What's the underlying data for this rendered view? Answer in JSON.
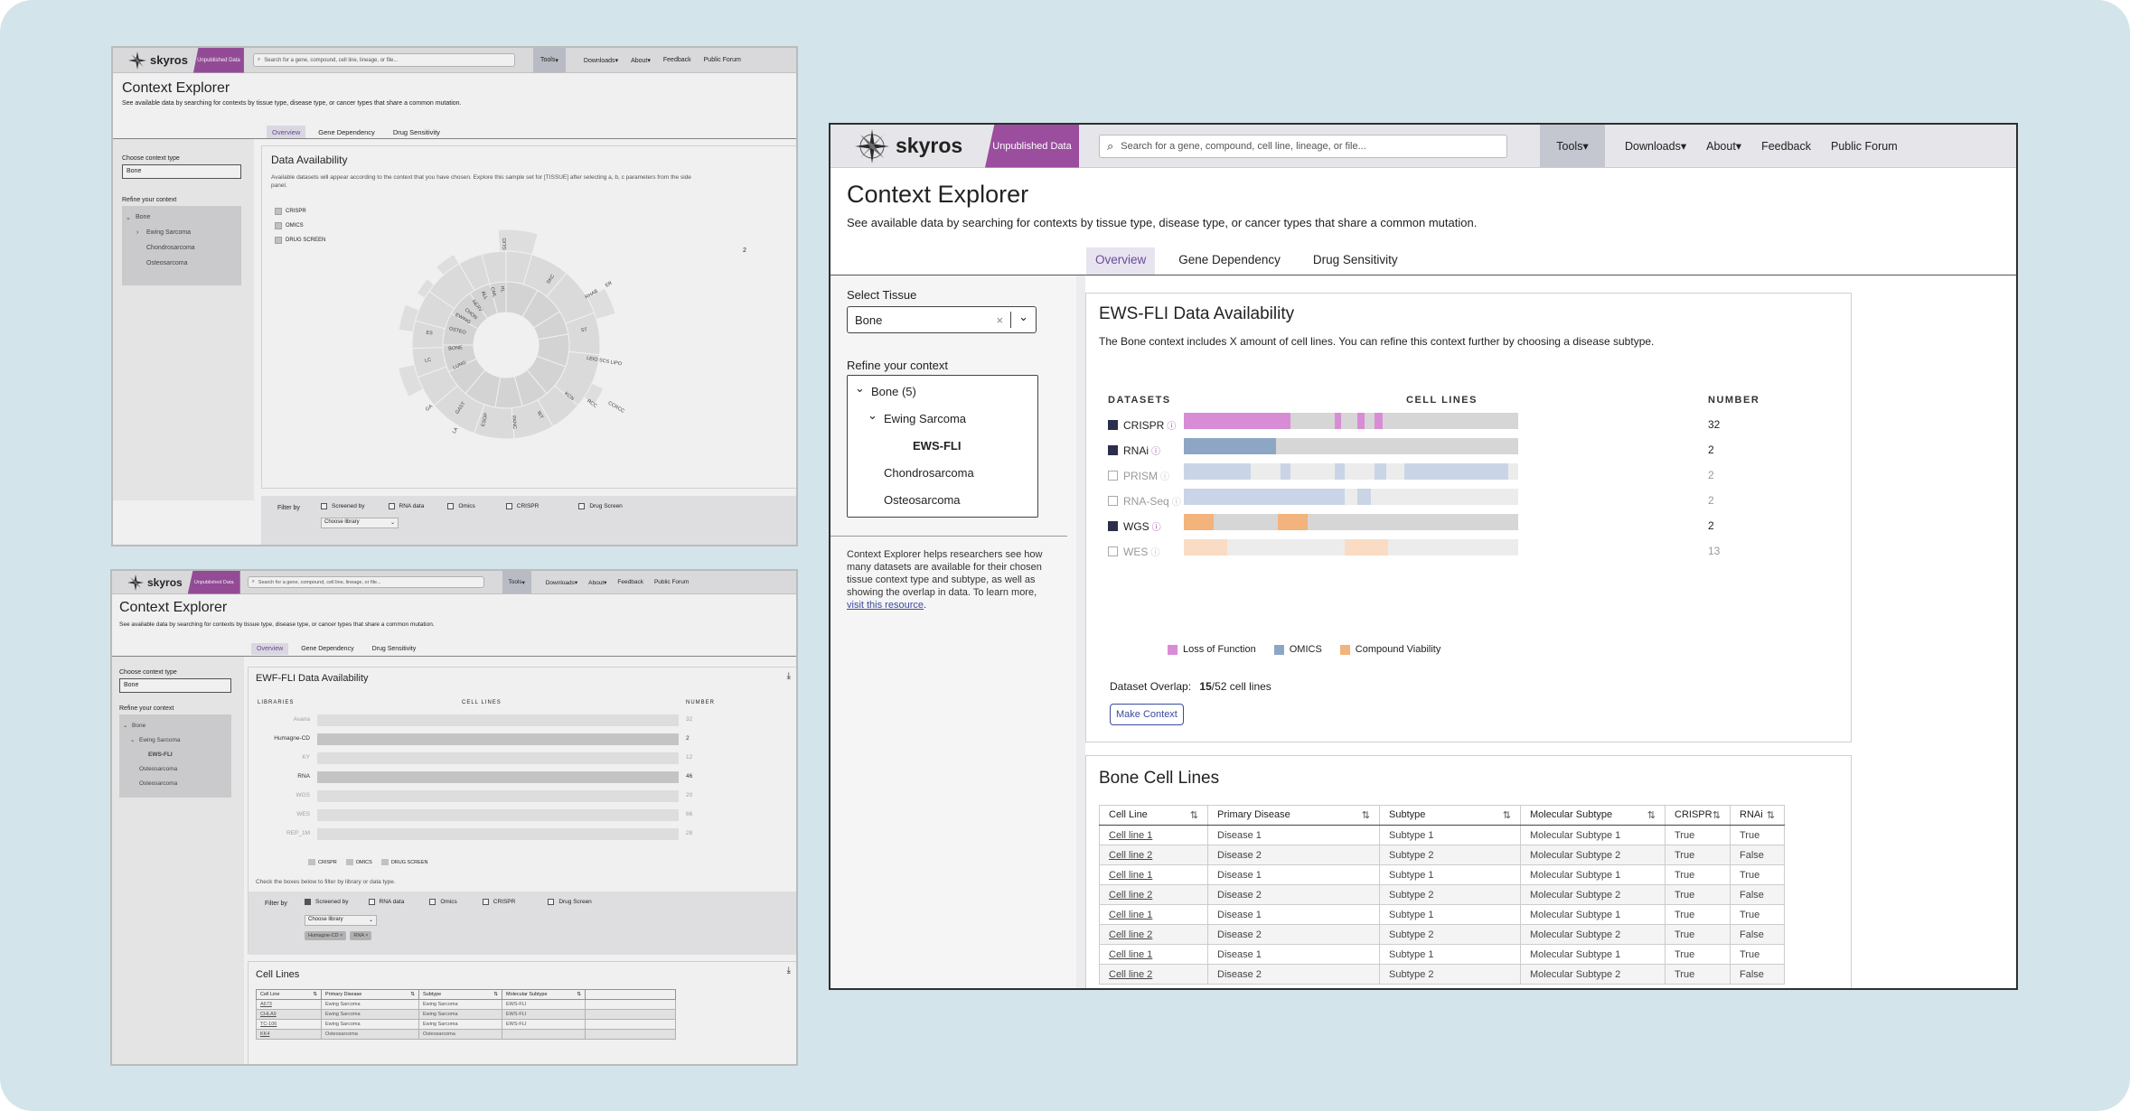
{
  "brand": {
    "name": "skyros",
    "badge": "Unpublished Data"
  },
  "nav": {
    "search_placeholder": "Search for a gene, compound, cell line, lineage, or file...",
    "tools": "Tools",
    "downloads": "Downloads",
    "about": "About",
    "feedback": "Feedback",
    "forum": "Public Forum",
    "caret": "▾"
  },
  "page": {
    "title": "Context Explorer",
    "subtitle": "See available data by searching for contexts by tissue type, disease type, or cancer types that share a common mutation.",
    "tabs": [
      "Overview",
      "Gene Dependency",
      "Drug Sensitivity"
    ]
  },
  "colors": {
    "crispr": "#d98cd6",
    "omics": "#8ea6c6",
    "compound": "#f3b37c",
    "brand": "#9b4d9e",
    "tab_active": "#6a4b9a"
  },
  "frame_main": {
    "select_tissue_label": "Select Tissue",
    "select_tissue_value": "Bone",
    "clear_glyph": "×",
    "dropdown_glyph": "⌄",
    "refine_label": "Refine your context",
    "tree": [
      {
        "label": "Bone (5)",
        "level": 0,
        "toggle": "⌄"
      },
      {
        "label": "Ewing Sarcoma",
        "level": 1,
        "toggle": "⌄"
      },
      {
        "label": "EWS-FLI",
        "level": 2,
        "toggle": ""
      },
      {
        "label": "Chondrosarcoma",
        "level": 1,
        "toggle": ""
      },
      {
        "label": "Osteosarcoma",
        "level": 1,
        "toggle": ""
      }
    ],
    "help_text": "Context Explorer helps researchers see how many datasets are available for their chosen tissue context type and subtype, as well as showing the overlap in data. To learn more, ",
    "help_link": "visit this resource",
    "help_end": ".",
    "availability_title": "EWS-FLI Data Availability",
    "availability_desc": "The Bone context includes X amount of cell lines. You can refine this context further by choosing a disease subtype.",
    "col_datasets": "DATASETS",
    "col_cell_lines": "CELL LINES",
    "col_number": "NUMBER",
    "info_glyph": "ⓘ",
    "datasets": [
      {
        "name": "CRISPR",
        "checked": true,
        "number": "32",
        "color": "#d98cd6",
        "segments": [
          [
            0,
            0.32
          ],
          [
            0.45,
            0.47
          ],
          [
            0.52,
            0.54
          ],
          [
            0.57,
            0.595
          ]
        ]
      },
      {
        "name": "RNAi",
        "checked": true,
        "number": "2",
        "color": "#8ea6c6",
        "segments": [
          [
            0,
            0.275
          ]
        ]
      },
      {
        "name": "PRISM",
        "checked": false,
        "number": "2",
        "color": "#c9d5e6",
        "segments": [
          [
            0,
            0.2
          ],
          [
            0.29,
            0.32
          ],
          [
            0.45,
            0.48
          ],
          [
            0.57,
            0.605
          ],
          [
            0.66,
            0.97
          ]
        ]
      },
      {
        "name": "RNA-Seq",
        "checked": false,
        "number": "2",
        "color": "#c9d5e6",
        "segments": [
          [
            0,
            0.48
          ],
          [
            0.52,
            0.56
          ]
        ]
      },
      {
        "name": "WGS",
        "checked": true,
        "number": "2",
        "color": "#f3b37c",
        "segments": [
          [
            0,
            0.09
          ],
          [
            0.28,
            0.37
          ]
        ]
      },
      {
        "name": "WES",
        "checked": false,
        "number": "13",
        "color": "#f9dcc3",
        "segments": [
          [
            0,
            0.13
          ],
          [
            0.48,
            0.61
          ]
        ]
      }
    ],
    "legend": [
      {
        "label": "Loss of Function",
        "color": "#d98cd6"
      },
      {
        "label": "OMICS",
        "color": "#8ea6c6"
      },
      {
        "label": "Compound Viability",
        "color": "#f3b37c"
      }
    ],
    "overlap_label": "Dataset Overlap:",
    "overlap_value": "15",
    "overlap_suffix": "/52 cell lines",
    "make_context": "Make Context",
    "table_title": "Bone Cell Lines",
    "table_headers": [
      "Cell Line",
      "Primary Disease",
      "Subtype",
      "Molecular Subtype",
      "CRISPR",
      "RNAi"
    ],
    "sort_glyph": "⇅",
    "table_rows": [
      [
        "Cell line 1",
        "Disease 1",
        "Subtype 1",
        "Molecular Subtype 1",
        "True",
        "True"
      ],
      [
        "Cell line 2",
        "Disease 2",
        "Subtype 2",
        "Molecular Subtype 2",
        "True",
        "False"
      ],
      [
        "Cell line 1",
        "Disease 1",
        "Subtype 1",
        "Molecular Subtype 1",
        "True",
        "True"
      ],
      [
        "Cell line 2",
        "Disease 2",
        "Subtype 2",
        "Molecular Subtype 2",
        "True",
        "False"
      ],
      [
        "Cell line 1",
        "Disease 1",
        "Subtype 1",
        "Molecular Subtype 1",
        "True",
        "True"
      ],
      [
        "Cell line 2",
        "Disease 2",
        "Subtype 2",
        "Molecular Subtype 2",
        "True",
        "False"
      ],
      [
        "Cell line 1",
        "Disease 1",
        "Subtype 1",
        "Molecular Subtype 1",
        "True",
        "True"
      ],
      [
        "Cell line 2",
        "Disease 2",
        "Subtype 2",
        "Molecular Subtype 2",
        "True",
        "False"
      ]
    ]
  },
  "frame_top": {
    "choose_label": "Choose context type",
    "choose_value": "Bone",
    "refine_label": "Refine your context",
    "tree": [
      {
        "label": "Bone",
        "toggle": "⌄",
        "level": 0
      },
      {
        "label": "Ewing Sarcoma",
        "toggle": "›",
        "level": 1
      },
      {
        "label": "Chondrosarcoma",
        "toggle": "",
        "level": 1
      },
      {
        "label": "Osteosarcoma",
        "toggle": "",
        "level": 1
      }
    ],
    "title": "Data Availability",
    "desc": "Available datasets will appear according to the context that you have chosen. Explore this sample set for [TISSUE] after selecting a, b, c parameters from the side panel.",
    "legend": [
      "CRISPR",
      "OMICS",
      "DRUG SCREEN"
    ],
    "stray_number": "2",
    "sunburst_labels": [
      "GLIO",
      "SKC",
      "RHAB",
      "ST",
      "LEIO SCS LIPO",
      "KCN",
      "RCC",
      "CCRCC",
      "WT",
      "PANC",
      "ESOP",
      "GAST",
      "LUNG",
      "BONE",
      "OSTEO",
      "EWING",
      "CHON",
      "NERV",
      "ALL",
      "CML",
      "HL",
      "LC",
      "ES",
      "GA",
      "LA",
      "ER"
    ],
    "filter_label": "Filter by",
    "filters": [
      "Screened by",
      "RNA data",
      "Omics",
      "CRISPR",
      "Drug Screen"
    ],
    "library_placeholder": "Choose library"
  },
  "frame_bottom": {
    "choose_label": "Choose context type",
    "choose_value": "Bone",
    "refine_label": "Refine your context",
    "tree": [
      {
        "label": "Bone",
        "toggle": "⌄",
        "level": 0
      },
      {
        "label": "Ewing Sarcoma",
        "toggle": "⌄",
        "level": 1
      },
      {
        "label": "EWS-FLI",
        "toggle": "",
        "level": 2
      },
      {
        "label": "Osteosarcoma",
        "toggle": "",
        "level": 1
      },
      {
        "label": "Osteosarcoma",
        "toggle": "",
        "level": 1
      }
    ],
    "title": "EWF-FLI Data Availability",
    "download_glyph": "⤓",
    "col_libraries": "LIBRARIES",
    "col_cell_lines": "CELL LINES",
    "col_number": "NUMBER",
    "libraries": [
      {
        "name": "Avana",
        "number": "32",
        "strong": false
      },
      {
        "name": "Humagne-CD",
        "number": "2",
        "strong": true
      },
      {
        "name": "KY",
        "number": "12",
        "strong": false
      },
      {
        "name": "RNA",
        "number": "46",
        "strong": true
      },
      {
        "name": "WGS",
        "number": "20",
        "strong": false
      },
      {
        "name": "WES",
        "number": "66",
        "strong": false
      },
      {
        "name": "REP_1M",
        "number": "28",
        "strong": false
      }
    ],
    "legend": [
      "CRISPR",
      "OMICS",
      "DRUG SCREEN"
    ],
    "check_hint": "Check the boxes below to filter by library or data type.",
    "filter_label": "Filter by",
    "filters": [
      "Screened by",
      "RNA data",
      "Omics",
      "CRISPR",
      "Drug Screen"
    ],
    "library_placeholder": "Choose library",
    "chips": [
      "Humagne-CD ×",
      "RNA ×"
    ],
    "cell_lines_title": "Cell Lines",
    "table_headers": [
      "Cell Line",
      "Primary Disease",
      "Subtype",
      "Molecular Subtype"
    ],
    "sort_glyph": "⇅",
    "table_rows": [
      [
        "A673",
        "Ewing Sarcoma",
        "Ewing Sarcoma",
        "EWS-FLI"
      ],
      [
        "CHLA9",
        "Ewing Sarcoma",
        "Ewing Sarcoma",
        "EWS-FLI"
      ],
      [
        "TC-106",
        "Ewing Sarcoma",
        "Ewing Sarcoma",
        "EWS-FLI"
      ],
      [
        "KK4",
        "Osteosarcoma",
        "Osteosarcoma",
        ""
      ]
    ]
  }
}
